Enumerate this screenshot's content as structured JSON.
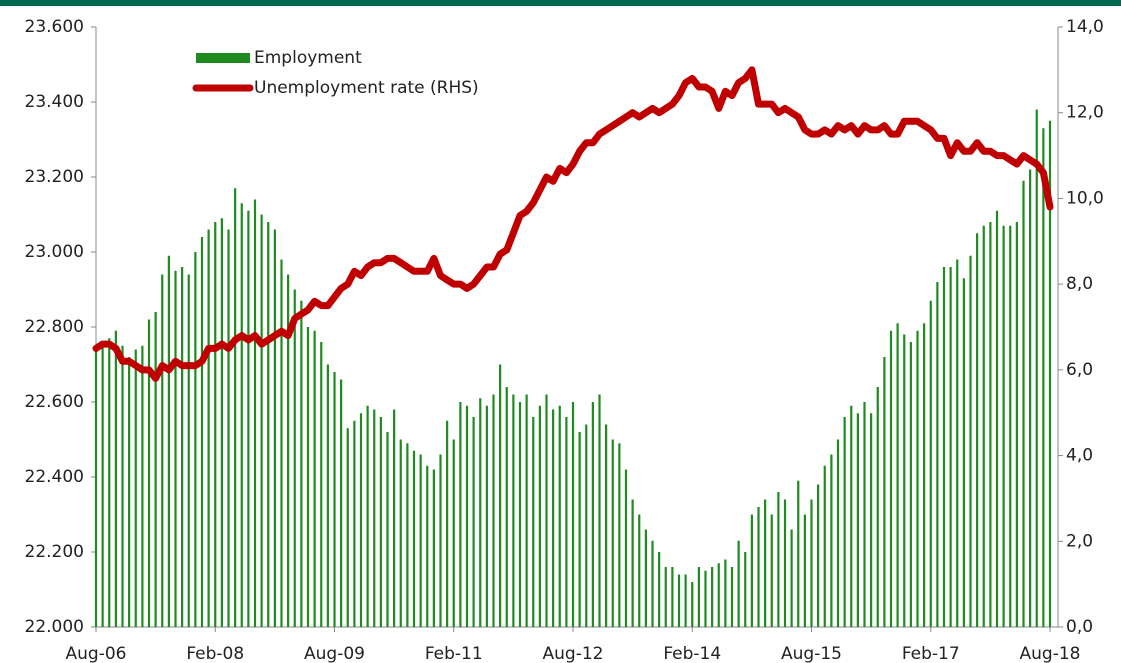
{
  "chart_data": {
    "type": "bar_line",
    "categories": [
      "Aug-06",
      null,
      null,
      null,
      null,
      null,
      null,
      null,
      null,
      null,
      null,
      null,
      null,
      null,
      null,
      null,
      null,
      null,
      "Feb-08",
      null,
      null,
      null,
      null,
      null,
      null,
      null,
      null,
      null,
      null,
      null,
      null,
      null,
      null,
      null,
      null,
      null,
      "Aug-09",
      null,
      null,
      null,
      null,
      null,
      null,
      null,
      null,
      null,
      null,
      null,
      null,
      null,
      null,
      null,
      null,
      null,
      "Feb-11",
      null,
      null,
      null,
      null,
      null,
      null,
      null,
      null,
      null,
      null,
      null,
      null,
      null,
      null,
      null,
      null,
      null,
      "Aug-12",
      null,
      null,
      null,
      null,
      null,
      null,
      null,
      null,
      null,
      null,
      null,
      null,
      null,
      null,
      null,
      null,
      null,
      "Feb-14",
      null,
      null,
      null,
      null,
      null,
      null,
      null,
      null,
      null,
      null,
      null,
      null,
      null,
      null,
      null,
      null,
      null,
      "Aug-15",
      null,
      null,
      null,
      null,
      null,
      null,
      null,
      null,
      null,
      null,
      null,
      null,
      null,
      null,
      null,
      null,
      null,
      "Feb-17",
      null,
      null,
      null,
      null,
      null,
      null,
      null,
      null,
      null,
      null,
      null,
      null,
      null,
      null,
      null,
      null,
      null,
      "Aug-18"
    ],
    "series": [
      {
        "name": "Employment",
        "type": "bar",
        "color": "#1f8a1f",
        "values": [
          22740,
          22760,
          22770,
          22790,
          22750,
          22720,
          22740,
          22750,
          22820,
          22840,
          22940,
          22990,
          22950,
          22960,
          22940,
          23000,
          23040,
          23060,
          23080,
          23090,
          23060,
          23170,
          23130,
          23110,
          23140,
          23100,
          23080,
          23060,
          22980,
          22940,
          22900,
          22870,
          22800,
          22790,
          22760,
          22700,
          22680,
          22660,
          22530,
          22550,
          22570,
          22590,
          22580,
          22560,
          22520,
          22580,
          22500,
          22490,
          22470,
          22460,
          22430,
          22420,
          22460,
          22550,
          22500,
          22600,
          22590,
          22560,
          22610,
          22590,
          22620,
          22700,
          22640,
          22620,
          22600,
          22620,
          22560,
          22590,
          22620,
          22580,
          22590,
          22560,
          22600,
          22520,
          22540,
          22600,
          22620,
          22540,
          22500,
          22490,
          22420,
          22340,
          22300,
          22260,
          22230,
          22200,
          22160,
          22160,
          22140,
          22140,
          22120,
          22160,
          22150,
          22160,
          22170,
          22180,
          22160,
          22230,
          22200,
          22300,
          22320,
          22340,
          22300,
          22360,
          22340,
          22260,
          22390,
          22300,
          22340,
          22380,
          22430,
          22460,
          22500,
          22560,
          22590,
          22570,
          22600,
          22570,
          22640,
          22720,
          22790,
          22810,
          22780,
          22760,
          22790,
          22810,
          22870,
          22920,
          22960,
          22960,
          22980,
          22930,
          22990,
          23050,
          23070,
          23080,
          23110,
          23070,
          23070,
          23080,
          23190,
          23220,
          23380,
          23330,
          23350
        ]
      },
      {
        "name": "Unemployment rate (RHS)",
        "type": "line",
        "axis": "y2",
        "color": "#c00000",
        "values": [
          6.5,
          6.6,
          6.6,
          6.5,
          6.2,
          6.2,
          6.1,
          6.0,
          6.0,
          5.8,
          6.1,
          6.0,
          6.2,
          6.1,
          6.1,
          6.1,
          6.2,
          6.5,
          6.5,
          6.6,
          6.5,
          6.7,
          6.8,
          6.7,
          6.8,
          6.6,
          6.7,
          6.8,
          6.9,
          6.8,
          7.2,
          7.3,
          7.4,
          7.6,
          7.5,
          7.5,
          7.7,
          7.9,
          8.0,
          8.3,
          8.2,
          8.4,
          8.5,
          8.5,
          8.6,
          8.6,
          8.5,
          8.4,
          8.3,
          8.3,
          8.3,
          8.6,
          8.2,
          8.1,
          8.0,
          8.0,
          7.9,
          8.0,
          8.2,
          8.4,
          8.4,
          8.7,
          8.8,
          9.2,
          9.6,
          9.7,
          9.9,
          10.2,
          10.5,
          10.4,
          10.7,
          10.6,
          10.8,
          11.1,
          11.3,
          11.3,
          11.5,
          11.6,
          11.7,
          11.8,
          11.9,
          12.0,
          11.9,
          12.0,
          12.1,
          12.0,
          12.1,
          12.2,
          12.4,
          12.7,
          12.8,
          12.6,
          12.6,
          12.5,
          12.1,
          12.5,
          12.4,
          12.7,
          12.8,
          13.0,
          12.2,
          12.2,
          12.2,
          12.0,
          12.1,
          12.0,
          11.9,
          11.6,
          11.5,
          11.5,
          11.6,
          11.5,
          11.7,
          11.6,
          11.7,
          11.5,
          11.7,
          11.6,
          11.6,
          11.7,
          11.5,
          11.5,
          11.8,
          11.8,
          11.8,
          11.7,
          11.6,
          11.4,
          11.4,
          11.0,
          11.3,
          11.1,
          11.1,
          11.3,
          11.1,
          11.1,
          11.0,
          11.0,
          10.9,
          10.8,
          11.0,
          10.9,
          10.8,
          10.6,
          9.8
        ]
      }
    ],
    "ylim": [
      22000,
      23600
    ],
    "yticks": [
      {
        "value": 22000,
        "label": "22.000"
      },
      {
        "value": 22200,
        "label": "22.200"
      },
      {
        "value": 22400,
        "label": "22.400"
      },
      {
        "value": 22600,
        "label": "22.600"
      },
      {
        "value": 22800,
        "label": "22.800"
      },
      {
        "value": 23000,
        "label": "23.000"
      },
      {
        "value": 23200,
        "label": "23.200"
      },
      {
        "value": 23400,
        "label": "23.400"
      },
      {
        "value": 23600,
        "label": "23.600"
      }
    ],
    "y2lim": [
      0,
      14
    ],
    "y2ticks": [
      {
        "value": 0,
        "label": "0,0"
      },
      {
        "value": 2,
        "label": "2,0"
      },
      {
        "value": 4,
        "label": "4,0"
      },
      {
        "value": 6,
        "label": "6,0"
      },
      {
        "value": 8,
        "label": "8,0"
      },
      {
        "value": 10,
        "label": "10,0"
      },
      {
        "value": 12,
        "label": "12,0"
      },
      {
        "value": 14,
        "label": "14,0"
      }
    ],
    "legend": "upper left"
  }
}
